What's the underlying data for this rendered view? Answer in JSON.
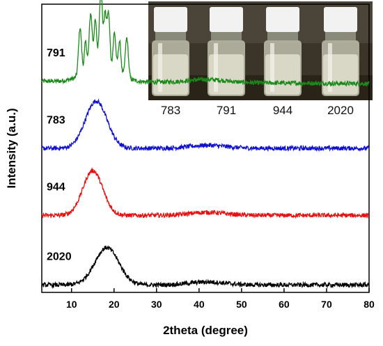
{
  "chart_data": {
    "type": "line",
    "xlabel": "2theta (degree)",
    "ylabel": "Intensity (a.u.)",
    "xlim": [
      3,
      80
    ],
    "x_ticks": [
      10,
      20,
      30,
      40,
      50,
      60,
      70,
      80
    ],
    "y_ticks_shown": false,
    "grid": false,
    "legend": "none (series labels placed beside curves)",
    "series": [
      {
        "name": "791",
        "color": "#1a8a1a",
        "baseline": 8.5,
        "peaks": [
          {
            "x": 12.0,
            "height": 1.9,
            "width": 0.5
          },
          {
            "x": 13.3,
            "height": 1.2,
            "width": 0.4
          },
          {
            "x": 14.5,
            "height": 2.2,
            "width": 0.5
          },
          {
            "x": 15.6,
            "height": 1.8,
            "width": 0.45
          },
          {
            "x": 16.9,
            "height": 3.0,
            "width": 0.5
          },
          {
            "x": 17.9,
            "height": 2.0,
            "width": 0.45
          },
          {
            "x": 18.7,
            "height": 2.1,
            "width": 0.45
          },
          {
            "x": 20.1,
            "height": 1.5,
            "width": 0.45
          },
          {
            "x": 21.3,
            "height": 1.3,
            "width": 0.45
          },
          {
            "x": 23.0,
            "height": 1.6,
            "width": 0.5
          }
        ],
        "hump": {
          "x": 17.0,
          "height": 0.7,
          "width": 5.0
        },
        "tail_drop": 0.1
      },
      {
        "name": "783",
        "color": "#1010d0",
        "baseline": 5.8,
        "peaks": [],
        "hump": {
          "x": 15.8,
          "height": 1.9,
          "width": 3.6
        },
        "tail_drop": 0.0
      },
      {
        "name": "944",
        "color": "#e81010",
        "baseline": 3.1,
        "peaks": [],
        "hump": {
          "x": 15.0,
          "height": 1.8,
          "width": 3.3
        },
        "tail_drop": 0.0
      },
      {
        "name": "2020",
        "color": "#000000",
        "baseline": 0.3,
        "peaks": [],
        "hump": {
          "x": 18.3,
          "height": 1.5,
          "width": 4.0
        },
        "tail_drop": 0.0
      }
    ]
  },
  "inset": {
    "labels": [
      "783",
      "791",
      "944",
      "2020"
    ]
  }
}
